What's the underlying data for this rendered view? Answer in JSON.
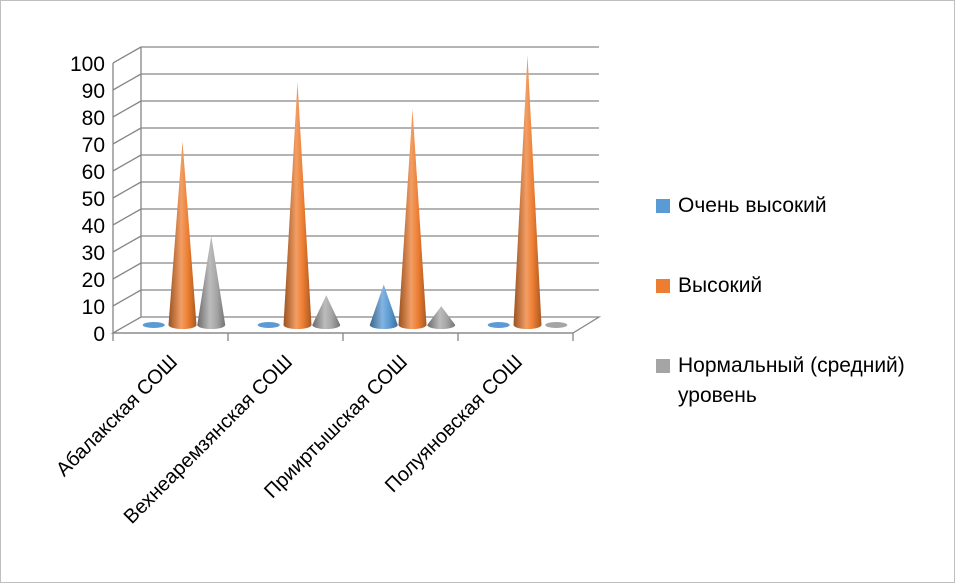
{
  "chart_data": {
    "type": "bar",
    "subtype": "3d-cone",
    "title": "",
    "xlabel": "",
    "ylabel": "",
    "ylim": [
      0,
      100
    ],
    "yticks": [
      0,
      10,
      20,
      30,
      40,
      50,
      60,
      70,
      80,
      90,
      100
    ],
    "grid": true,
    "legend_position": "right",
    "categories": [
      "Абалакская СОШ",
      "Вехнеаремзянская СОШ",
      "Прииртышская СОШ",
      "Полуяновская СОШ"
    ],
    "series": [
      {
        "name": "Очень высокий",
        "color": "#5b9bd5",
        "values": [
          0,
          0,
          15,
          0
        ]
      },
      {
        "name": "Высокий",
        "color": "#ed7d31",
        "values": [
          68,
          90,
          80,
          100
        ]
      },
      {
        "name": "Нормальный (средний) уровень",
        "color": "#a5a5a5",
        "values": [
          33,
          11,
          7,
          0
        ]
      }
    ]
  }
}
